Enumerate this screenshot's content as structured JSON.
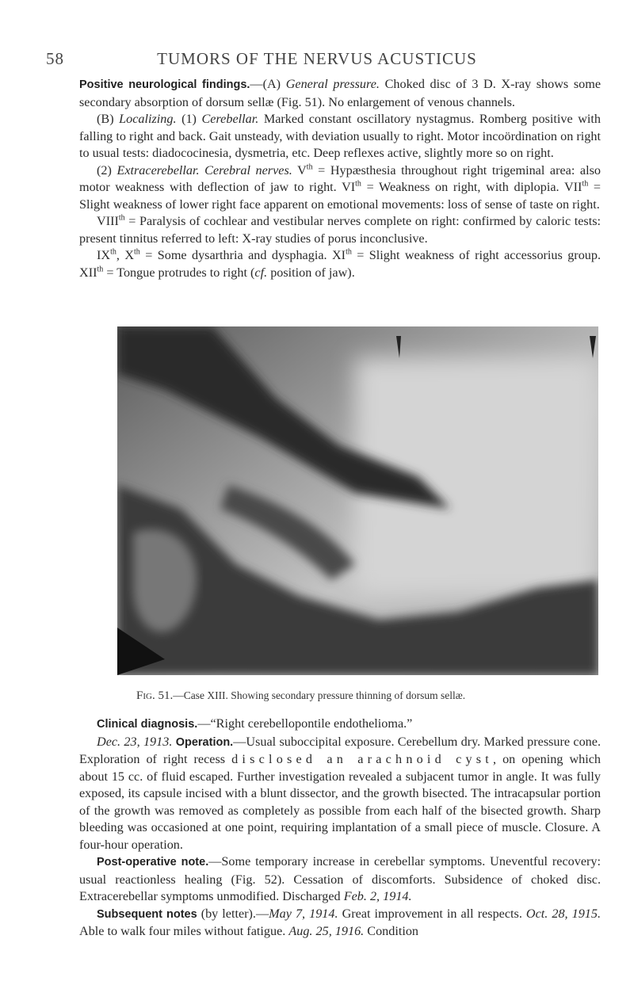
{
  "header": {
    "page_number": "58",
    "title": "TUMORS OF THE NERVUS ACUSTICUS"
  },
  "paragraphs_before": [
    [
      "Positive neurological findings.",
      "—(A)",
      "General pressure.",
      "Choked disc of 3 D. X-ray shows some secondary absorption of dorsum sellæ (Fig. 51). No enlargement of venous channels."
    ],
    [
      "(B)",
      "Localizing.",
      "(1)",
      "Cerebellar.",
      "Marked constant oscillatory nystagmus. Romberg positive with falling to right and back. Gait unsteady, with deviation usually to right. Motor incoördination on right to usual tests: diadococinesia, dysmetria, etc. Deep reflexes active, slightly more so on right."
    ],
    [
      "(2)",
      "Extracerebellar. Cerebral nerves.",
      "V",
      "th",
      "= Hypæsthesia throughout right trigeminal area: also motor weakness with deflection of jaw to right.",
      "VI",
      "th",
      "= Weakness on right, with diplopia.",
      "VII",
      "th",
      "= Slight weakness of lower right face apparent on emotional movements: loss of sense of taste on right."
    ],
    [
      "VIII",
      "th",
      "= Paralysis of cochlear and vestibular nerves complete on right: confirmed by caloric tests: present tinnitus referred to left: X-ray studies of porus inconclusive."
    ],
    [
      "IX",
      "th",
      ", X",
      "th",
      "= Some dysarthria and dysphagia.",
      "XI",
      "th",
      "= Slight weakness of right accessorius group.",
      "XII",
      "th",
      "= Tongue protrudes to right (",
      "cf.",
      "position of jaw)."
    ]
  ],
  "figure": {
    "label": "Fig. 51.",
    "caption": "—Case XIII. Showing secondary pressure thinning of dorsum sellæ."
  },
  "paragraphs_after": [
    [
      "Clinical diagnosis.",
      "—“Right cerebellopontile endothelioma.”"
    ],
    [
      "Dec. 23, 1913.",
      "Operation.",
      "—Usual suboccipital exposure. Cerebellum dry. Marked pressure cone. Exploration of right recess",
      "disclosed an arachnoid cyst",
      ", on opening which about 15 cc. of fluid escaped. Further investigation revealed a subjacent tumor in angle. It was fully exposed, its capsule incised with a blunt dissector, and the growth bisected. The intracapsular portion of the growth was removed as completely as possible from each half of the bisected growth. Sharp bleeding was occasioned at one point, requiring implantation of a small piece of muscle. Closure. A four-hour operation."
    ],
    [
      "Post-operative note.",
      "—Some temporary increase in cerebellar symptoms. Uneventful recovery: usual reactionless healing (Fig. 52). Cessation of discomforts. Subsidence of choked disc. Extracerebellar symptoms unmodified. Discharged",
      "Feb. 2, 1914."
    ],
    [
      "Subsequent notes",
      "(by letter).—",
      "May 7, 1914.",
      "Great improvement in all respects.",
      "Oct. 28, 1915.",
      "Able to walk four miles without fatigue.",
      "Aug. 25, 1916.",
      "Condition"
    ]
  ]
}
